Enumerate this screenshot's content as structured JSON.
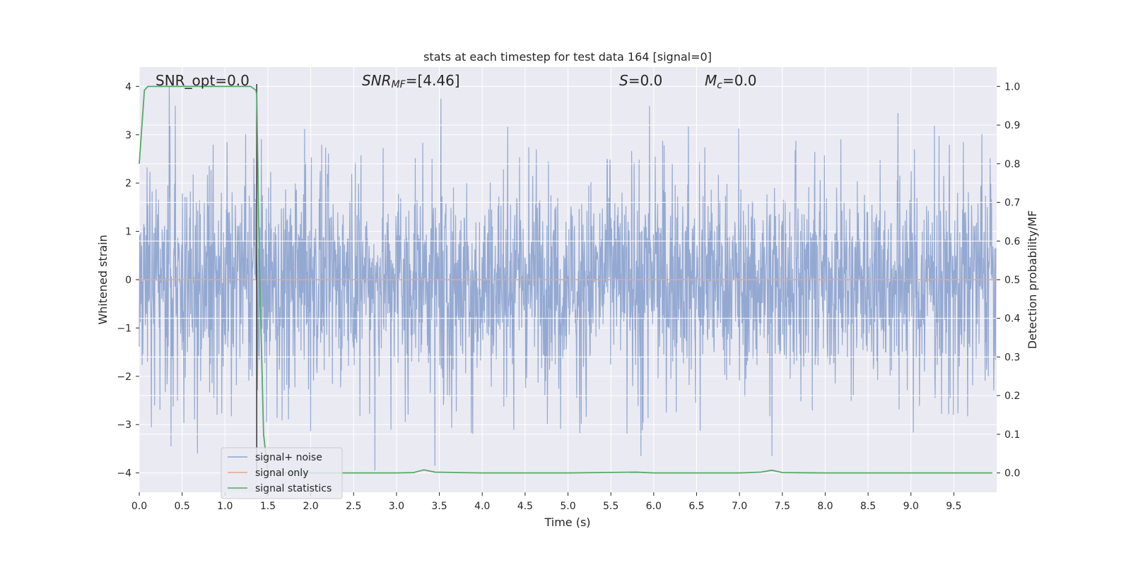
{
  "chart_data": {
    "type": "line",
    "title": "stats at each timestep for test data 164 [signal=0]",
    "xlabel": "Time (s)",
    "ylabel_left": "Whitened strain",
    "ylabel_right": "Detection probability/MF",
    "xlim": [
      0.0,
      10.0
    ],
    "ylim_left": [
      -4.4,
      4.4
    ],
    "ylim_right": [
      -0.05,
      1.05
    ],
    "xticks": [
      "0.0",
      "0.5",
      "1.0",
      "1.5",
      "2.0",
      "2.5",
      "3.0",
      "3.5",
      "4.0",
      "4.5",
      "5.0",
      "5.5",
      "6.0",
      "6.5",
      "7.0",
      "7.5",
      "8.0",
      "8.5",
      "9.0",
      "9.5"
    ],
    "yticks_left": [
      "4",
      "3",
      "2",
      "1",
      "0",
      "−1",
      "−2",
      "−3",
      "−4"
    ],
    "yticks_right": [
      "1.0",
      "0.9",
      "0.8",
      "0.7",
      "0.6",
      "0.5",
      "0.4",
      "0.3",
      "0.2",
      "0.1",
      "0.0"
    ],
    "grid": true,
    "legend_position": "lower-left",
    "annotations": {
      "snr_opt": "SNR_opt=0.0",
      "snr_mf_prefix": "SNR",
      "snr_mf_sub": "MF",
      "snr_mf_value": "=[4.46]",
      "s_sym": "S",
      "s_value": "=0.0",
      "mc_sym": "M",
      "mc_sub": "c",
      "mc_value": "=0.0"
    },
    "vline_x": 1.37,
    "series": [
      {
        "name": "signal+ noise",
        "axis": "left",
        "color": "#8fa5d0",
        "description_values": {
          "typical_range": [
            -2.4,
            2.4
          ],
          "notable_peaks": [
            [
              0.35,
              4.0
            ],
            [
              0.42,
              3.6
            ],
            [
              3.52,
              3.75
            ],
            [
              5.95,
              3.6
            ],
            [
              8.85,
              3.45
            ]
          ],
          "notable_troughs": [
            [
              0.37,
              -3.45
            ],
            [
              0.68,
              -3.6
            ],
            [
              2.75,
              -3.95
            ],
            [
              3.45,
              -3.85
            ],
            [
              5.85,
              -3.65
            ],
            [
              7.38,
              -3.65
            ]
          ]
        }
      },
      {
        "name": "signal only",
        "axis": "left",
        "color": "#e8a786",
        "x": [
          0.0,
          10.0
        ],
        "y": [
          0.0,
          0.0
        ]
      },
      {
        "name": "signal statistics",
        "axis": "right",
        "color": "#55a868",
        "x": [
          0.0,
          0.06,
          0.1,
          0.2,
          0.5,
          1.0,
          1.3,
          1.36,
          1.37,
          1.4,
          1.45,
          1.5,
          1.55,
          1.6,
          2.0,
          2.5,
          3.0,
          3.2,
          3.32,
          3.45,
          3.7,
          4.0,
          5.0,
          5.8,
          6.0,
          7.0,
          7.25,
          7.38,
          7.5,
          8.0,
          9.0,
          9.95
        ],
        "y": [
          0.8,
          0.99,
          1.0,
          1.0,
          1.0,
          1.0,
          1.0,
          0.99,
          0.98,
          0.55,
          0.1,
          0.0,
          0.0,
          0.0,
          0.0,
          0.0,
          0.0,
          0.001,
          0.008,
          0.002,
          0.001,
          0.0,
          0.0,
          0.002,
          0.0,
          0.0,
          0.002,
          0.007,
          0.001,
          0.0,
          0.0,
          0.0
        ]
      }
    ]
  }
}
